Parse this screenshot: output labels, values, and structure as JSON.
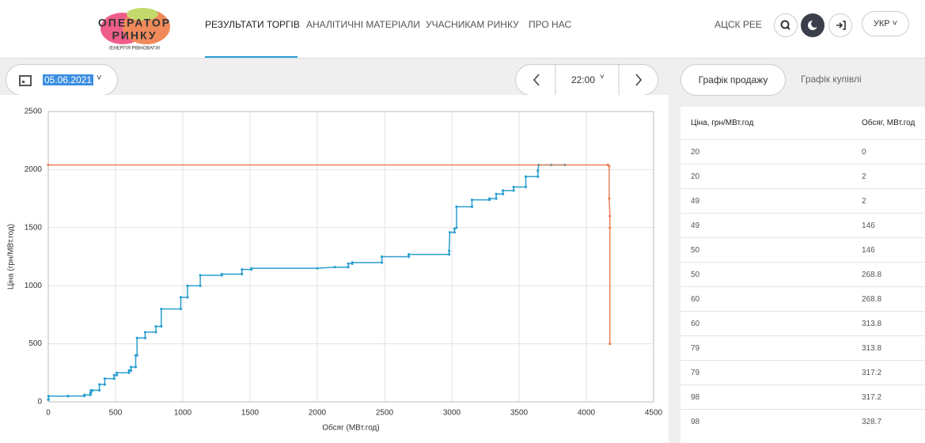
{
  "header": {
    "logo": {
      "line1": "ОПЕРАТОР",
      "line2": "РИНКУ",
      "tagline": "/ЕНЕРГІЯ РІВНОВАГИ/"
    },
    "nav": [
      "РЕЗУЛЬТАТИ ТОРГІВ",
      "АНАЛІТИЧНІ МАТЕРІАЛИ",
      "УЧАСНИКАМ РИНКУ",
      "ПРО НАС"
    ],
    "link": "АЦСК РЕЕ",
    "language": "УКР"
  },
  "controls": {
    "date": "05.06.2021",
    "time": "22:00",
    "tabs": [
      "Графік продажу",
      "Графік купівлі"
    ]
  },
  "chart_data": {
    "type": "line",
    "xlabel": "Обсяг (МВт.год)",
    "ylabel": "Ціна (грн/МВт.год)",
    "xlim": [
      0,
      4500
    ],
    "xticks": [
      0,
      500,
      1000,
      1500,
      2000,
      2500,
      3000,
      3500,
      4000,
      4500
    ],
    "ylim": [
      0,
      2500
    ],
    "yticks": [
      0,
      500,
      1000,
      1500,
      2000,
      2500
    ],
    "grid": true,
    "series": [
      {
        "color": "#2a9fd0",
        "x": [
          0,
          2,
          2,
          146,
          146,
          268.8,
          268.8,
          313.8,
          313.8,
          317.2,
          317.2,
          328.7,
          328.7,
          380,
          380,
          420,
          420,
          490,
          490,
          510,
          510,
          600,
          600,
          615,
          615,
          650,
          650,
          660,
          660,
          720,
          720,
          800,
          800,
          840,
          840,
          985,
          985,
          1035,
          1035,
          1130,
          1130,
          1290,
          1290,
          1440,
          1440,
          1510,
          1510,
          2000,
          2130,
          2230,
          2230,
          2260,
          2260,
          2480,
          2480,
          2680,
          2680,
          2980,
          2980,
          2985,
          3020,
          3020,
          3035,
          3035,
          3150,
          3150,
          3280,
          3280,
          3330,
          3330,
          3380,
          3380,
          3460,
          3460,
          3550,
          3550,
          3640,
          3640,
          3645,
          3740,
          3840
        ],
        "values": [
          20,
          20,
          49,
          49,
          50,
          50,
          60,
          60,
          79,
          79,
          98,
          98,
          100,
          100,
          150,
          150,
          200,
          200,
          230,
          230,
          250,
          250,
          270,
          270,
          300,
          300,
          400,
          400,
          550,
          550,
          600,
          600,
          650,
          650,
          800,
          800,
          900,
          900,
          1000,
          1000,
          1090,
          1090,
          1100,
          1100,
          1140,
          1140,
          1150,
          1150,
          1160,
          1160,
          1190,
          1190,
          1200,
          1200,
          1250,
          1250,
          1270,
          1270,
          1300,
          1460,
          1460,
          1490,
          1500,
          1680,
          1680,
          1740,
          1740,
          1750,
          1750,
          1790,
          1790,
          1820,
          1820,
          1850,
          1850,
          1940,
          1940,
          1990,
          2040,
          2040,
          2040
        ]
      },
      {
        "color": "#e8825a",
        "x": [
          0,
          4160,
          4170,
          4170,
          4175,
          4175,
          4175
        ],
        "values": [
          2040,
          2040,
          2030,
          1750,
          1600,
          1500,
          500
        ]
      }
    ]
  },
  "table": {
    "columns": [
      "Ціна, грн/МВт.год",
      "Обсяг, МВт.год"
    ],
    "rows": [
      [
        "20",
        "0"
      ],
      [
        "20",
        "2"
      ],
      [
        "49",
        "2"
      ],
      [
        "49",
        "146"
      ],
      [
        "50",
        "146"
      ],
      [
        "50",
        "268.8"
      ],
      [
        "60",
        "268.8"
      ],
      [
        "60",
        "313.8"
      ],
      [
        "79",
        "313.8"
      ],
      [
        "79",
        "317.2"
      ],
      [
        "98",
        "317.2"
      ],
      [
        "98",
        "328.7"
      ]
    ]
  }
}
